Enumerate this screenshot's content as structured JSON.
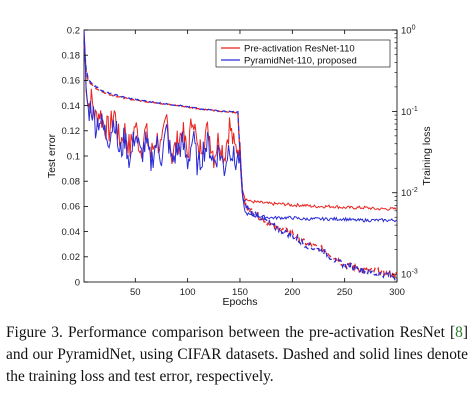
{
  "chart_data": {
    "type": "line",
    "title": "",
    "xlabel": "Epochs",
    "ylabel_left": "Test error",
    "ylabel_right": "Training loss",
    "xlim": [
      1,
      300
    ],
    "ylim_left": [
      0,
      0.2
    ],
    "ylim_right_log": [
      0.0008,
      1
    ],
    "xticks": [
      "50",
      "100",
      "150",
      "200",
      "250",
      "300"
    ],
    "yticks_left": [
      "0",
      "0.02",
      "0.04",
      "0.06",
      "0.08",
      "0.1",
      "0.12",
      "0.14",
      "0.16",
      "0.18",
      "0.2"
    ],
    "yticks_right": [
      {
        "base": "10",
        "exp": "0",
        "value": 1
      },
      {
        "base": "10",
        "exp": "-1",
        "value": 0.1
      },
      {
        "base": "10",
        "exp": "-2",
        "value": 0.01
      },
      {
        "base": "10",
        "exp": "-3",
        "value": 0.001
      }
    ],
    "grid": false,
    "legend_position": "top-right",
    "line_style_note": "solid = test error (left axis), dashed = training loss (right axis, log scale)",
    "series": [
      {
        "name": "Pre-activation ResNet-110",
        "color": "#e8231f",
        "test_error": {
          "x": [
            1,
            3,
            5,
            8,
            12,
            16,
            20,
            25,
            30,
            35,
            40,
            45,
            50,
            55,
            60,
            65,
            70,
            75,
            80,
            85,
            90,
            95,
            100,
            105,
            110,
            115,
            120,
            125,
            130,
            135,
            140,
            145,
            150,
            152,
            155,
            160,
            170,
            180,
            190,
            200,
            210,
            220,
            230,
            240,
            250,
            260,
            270,
            280,
            290,
            300
          ],
          "y": [
            0.2,
            0.16,
            0.14,
            0.145,
            0.13,
            0.135,
            0.125,
            0.12,
            0.135,
            0.11,
            0.12,
            0.105,
            0.125,
            0.105,
            0.12,
            0.1,
            0.115,
            0.105,
            0.13,
            0.1,
            0.11,
            0.12,
            0.1,
            0.135,
            0.1,
            0.115,
            0.12,
            0.1,
            0.115,
            0.1,
            0.125,
            0.105,
            0.11,
            0.075,
            0.066,
            0.064,
            0.063,
            0.062,
            0.062,
            0.061,
            0.061,
            0.06,
            0.06,
            0.06,
            0.059,
            0.059,
            0.059,
            0.058,
            0.058,
            0.058
          ]
        },
        "training_loss": {
          "x": [
            1,
            3,
            5,
            10,
            20,
            30,
            40,
            50,
            60,
            70,
            80,
            90,
            100,
            110,
            120,
            130,
            140,
            148,
            150,
            153,
            156,
            160,
            170,
            180,
            190,
            200,
            210,
            220,
            230,
            240,
            250,
            260,
            270,
            280,
            290,
            300
          ],
          "y": [
            0.7,
            0.32,
            0.24,
            0.2,
            0.17,
            0.155,
            0.145,
            0.138,
            0.132,
            0.128,
            0.122,
            0.118,
            0.113,
            0.108,
            0.104,
            0.1,
            0.098,
            0.097,
            0.03,
            0.008,
            0.007,
            0.006,
            0.005,
            0.004,
            0.0035,
            0.0032,
            0.0025,
            0.0022,
            0.002,
            0.0016,
            0.0013,
            0.0012,
            0.0011,
            0.0011,
            0.001,
            0.001
          ]
        }
      },
      {
        "name": "PyramidNet-110, proposed",
        "color": "#2b2bd6",
        "test_error": {
          "x": [
            1,
            3,
            5,
            8,
            12,
            16,
            20,
            25,
            30,
            35,
            40,
            45,
            50,
            55,
            60,
            65,
            70,
            75,
            80,
            85,
            90,
            95,
            100,
            105,
            110,
            115,
            120,
            125,
            130,
            135,
            140,
            145,
            150,
            152,
            155,
            160,
            170,
            180,
            190,
            200,
            210,
            220,
            230,
            240,
            250,
            260,
            270,
            280,
            290,
            300
          ],
          "y": [
            0.2,
            0.155,
            0.135,
            0.14,
            0.125,
            0.13,
            0.12,
            0.115,
            0.13,
            0.1,
            0.115,
            0.095,
            0.12,
            0.1,
            0.11,
            0.095,
            0.11,
            0.1,
            0.12,
            0.095,
            0.105,
            0.11,
            0.095,
            0.115,
            0.09,
            0.105,
            0.11,
            0.095,
            0.105,
            0.09,
            0.11,
            0.095,
            0.1,
            0.07,
            0.055,
            0.053,
            0.052,
            0.051,
            0.051,
            0.051,
            0.05,
            0.05,
            0.05,
            0.05,
            0.05,
            0.049,
            0.049,
            0.049,
            0.049,
            0.049
          ]
        },
        "training_loss": {
          "x": [
            1,
            3,
            5,
            10,
            20,
            30,
            40,
            50,
            60,
            70,
            80,
            90,
            100,
            110,
            120,
            130,
            140,
            148,
            150,
            153,
            156,
            160,
            170,
            180,
            190,
            200,
            210,
            220,
            230,
            240,
            250,
            260,
            270,
            280,
            290,
            300
          ],
          "y": [
            0.75,
            0.33,
            0.25,
            0.21,
            0.175,
            0.16,
            0.148,
            0.14,
            0.134,
            0.129,
            0.123,
            0.119,
            0.114,
            0.109,
            0.105,
            0.101,
            0.099,
            0.098,
            0.03,
            0.008,
            0.007,
            0.006,
            0.005,
            0.004,
            0.0034,
            0.003,
            0.0024,
            0.0021,
            0.0019,
            0.0015,
            0.0013,
            0.0012,
            0.0011,
            0.001,
            0.001,
            0.0009
          ]
        }
      }
    ]
  },
  "caption": {
    "prefix": "Figure 3. Performance comparison between the pre-activation ResNet [",
    "ref": "8",
    "suffix": "] and our PyramidNet, using CIFAR datasets. Dashed and solid lines denote the training loss and test error, respectively."
  }
}
